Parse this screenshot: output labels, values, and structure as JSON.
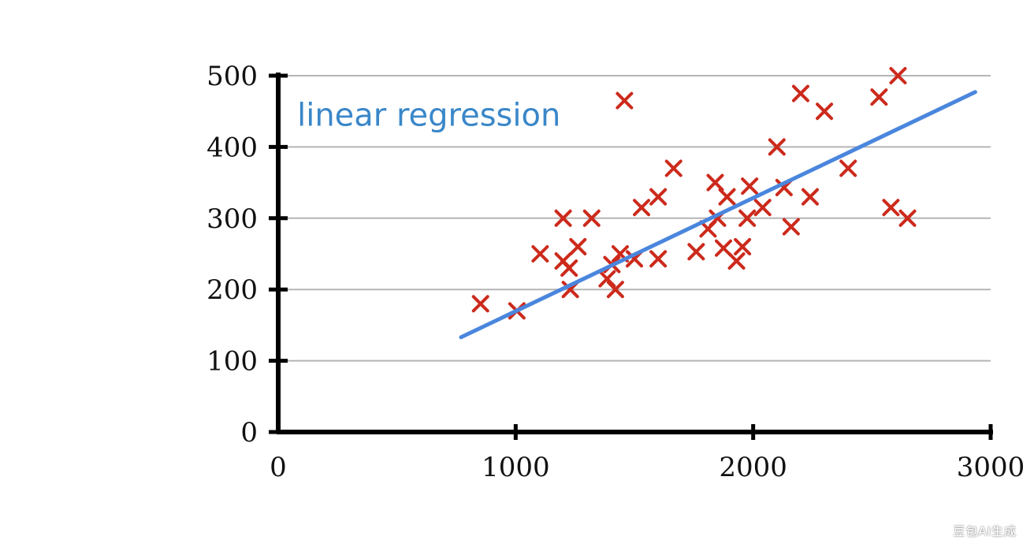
{
  "chart_data": {
    "type": "scatter",
    "title": "",
    "xlabel": "",
    "ylabel": "",
    "xlim": [
      0,
      3000
    ],
    "ylim": [
      0,
      500
    ],
    "x_ticks": [
      0,
      1000,
      2000,
      3000
    ],
    "y_ticks": [
      0,
      100,
      200,
      300,
      400,
      500
    ],
    "x_tick_labels": [
      "0",
      "1000",
      "2000",
      "3000"
    ],
    "y_tick_labels": [
      "0",
      "100",
      "200",
      "300",
      "400",
      "500"
    ],
    "grid": "horizontal",
    "marker": "x",
    "colors": {
      "points": "#cc2a1c",
      "line": "#4a86dd",
      "annotation": "#3a87c9",
      "grid": "#b5b5b5",
      "axis": "#000000"
    },
    "series": [
      {
        "type": "scatter",
        "points": [
          [
            852,
            180
          ],
          [
            1005,
            170
          ],
          [
            1103,
            250
          ],
          [
            1200,
            300
          ],
          [
            1200,
            240
          ],
          [
            1225,
            230
          ],
          [
            1230,
            200
          ],
          [
            1262,
            260
          ],
          [
            1320,
            300
          ],
          [
            1385,
            215
          ],
          [
            1405,
            235
          ],
          [
            1420,
            200
          ],
          [
            1440,
            250
          ],
          [
            1458,
            465
          ],
          [
            1500,
            243
          ],
          [
            1530,
            315
          ],
          [
            1600,
            330
          ],
          [
            1600,
            243
          ],
          [
            1665,
            370
          ],
          [
            1760,
            253
          ],
          [
            1810,
            285
          ],
          [
            1840,
            350
          ],
          [
            1850,
            300
          ],
          [
            1875,
            258
          ],
          [
            1890,
            330
          ],
          [
            1930,
            240
          ],
          [
            1955,
            260
          ],
          [
            1975,
            300
          ],
          [
            1985,
            345
          ],
          [
            2040,
            315
          ],
          [
            2100,
            400
          ],
          [
            2130,
            343
          ],
          [
            2160,
            288
          ],
          [
            2200,
            475
          ],
          [
            2240,
            330
          ],
          [
            2300,
            450
          ],
          [
            2400,
            370
          ],
          [
            2530,
            470
          ],
          [
            2580,
            315
          ],
          [
            2610,
            500
          ],
          [
            2650,
            300
          ]
        ]
      },
      {
        "type": "line",
        "name": "linear regression",
        "x": [
          770,
          2935
        ],
        "y": [
          133,
          477
        ]
      }
    ],
    "annotations": [
      {
        "text": "linear regression",
        "at": [
          80,
          445
        ]
      }
    ]
  },
  "watermark": "豆包AI生成"
}
